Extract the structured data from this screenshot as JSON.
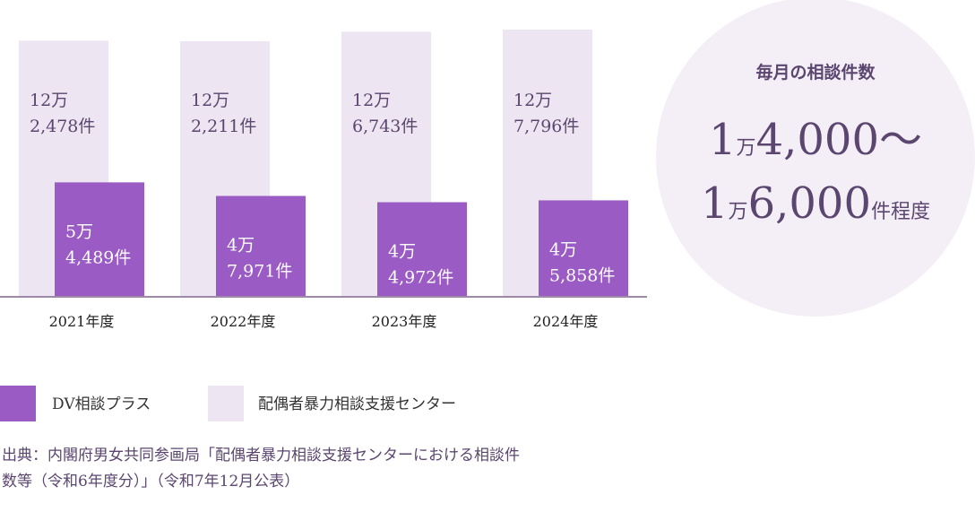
{
  "chart_data": {
    "type": "bar",
    "categories": [
      "2021年度",
      "2022年度",
      "2023年度",
      "2024年度"
    ],
    "series": [
      {
        "name": "配偶者暴力相談支援センター",
        "color": "#ede5f1",
        "values": [
          122478,
          122211,
          126743,
          127796
        ],
        "value_labels": [
          [
            "12万",
            "2,478件"
          ],
          [
            "12万",
            "2,211件"
          ],
          [
            "12万",
            "6,743件"
          ],
          [
            "12万",
            "7,796件"
          ]
        ]
      },
      {
        "name": "DV相談プラス",
        "color": "#9a5bc5",
        "values": [
          54489,
          47971,
          44972,
          45858
        ],
        "value_labels": [
          [
            "5万",
            "4,489件"
          ],
          [
            "4万",
            "7,971件"
          ],
          [
            "4万",
            "4,972件"
          ],
          [
            "4万",
            "5,858件"
          ]
        ]
      }
    ],
    "callout": {
      "title": "毎月の相談件数",
      "line1": [
        "1",
        "万",
        "4,000～"
      ],
      "line2": [
        "1",
        "万",
        "6,000",
        "件程度"
      ]
    },
    "source": [
      "出典：内閣府男女共同参画局「配偶者暴力相談支援センターにおける相談件",
      "数等（令和6年度分）」（令和7年12月公表）"
    ]
  }
}
